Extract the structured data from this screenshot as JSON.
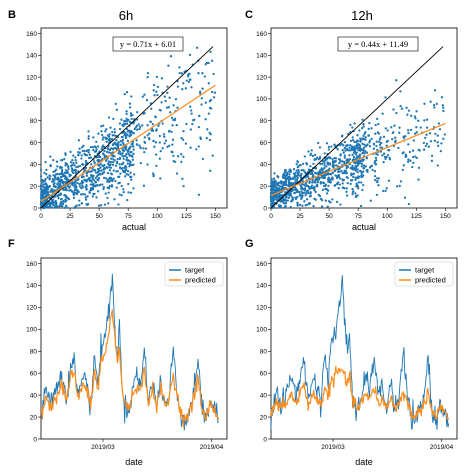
{
  "colors": {
    "blue": "#1f77b4",
    "orange": "#ff8c1a",
    "black": "#000000"
  },
  "chart_data": [
    {
      "panel": "B",
      "type": "scatter",
      "title": "6h",
      "xlabel": "actual",
      "ylabel": "",
      "xlim": [
        0,
        160
      ],
      "ylim": [
        0,
        165
      ],
      "xticks": [
        0,
        25,
        50,
        75,
        100,
        125,
        150
      ],
      "yticks": [
        0,
        20,
        40,
        60,
        80,
        100,
        120,
        140,
        160
      ],
      "equation": "y = 0.71x + 6.01",
      "identity_line": {
        "x": [
          0,
          148
        ],
        "y": [
          0,
          148
        ]
      },
      "fit": {
        "slope": 0.71,
        "intercept": 6.01,
        "x_range": [
          0,
          150
        ]
      },
      "point_cloud": [
        {
          "x_range": [
            0,
            80
          ],
          "y_center_slope": 0.62,
          "y_center_intercept": 8,
          "y_spread": 18,
          "n": 900
        },
        {
          "x_range": [
            70,
            150
          ],
          "y_center_slope": 0.55,
          "y_center_intercept": 18,
          "y_spread": 22,
          "n": 260
        }
      ]
    },
    {
      "panel": "C",
      "type": "scatter",
      "title": "12h",
      "xlabel": "actual",
      "ylabel": "",
      "xlim": [
        0,
        160
      ],
      "ylim": [
        0,
        165
      ],
      "xticks": [
        0,
        25,
        50,
        75,
        100,
        125,
        150
      ],
      "yticks": [
        0,
        20,
        40,
        60,
        80,
        100,
        120,
        140,
        160
      ],
      "equation": "y = 0.44x + 11.49",
      "identity_line": {
        "x": [
          0,
          148
        ],
        "y": [
          0,
          148
        ]
      },
      "fit": {
        "slope": 0.44,
        "intercept": 11.49,
        "x_range": [
          0,
          150
        ]
      },
      "point_cloud": [
        {
          "x_range": [
            0,
            80
          ],
          "y_center_slope": 0.42,
          "y_center_intercept": 12,
          "y_spread": 14,
          "n": 900
        },
        {
          "x_range": [
            70,
            150
          ],
          "y_center_slope": 0.35,
          "y_center_intercept": 18,
          "y_spread": 16,
          "n": 260
        }
      ]
    },
    {
      "panel": "F",
      "type": "line",
      "title": "",
      "xlabel": "date",
      "ylabel": "",
      "xlim": [
        0,
        180
      ],
      "ylim": [
        0,
        165
      ],
      "xticks": [
        {
          "value": 60,
          "label": "2019/03"
        },
        {
          "value": 165,
          "label": "2019/04"
        }
      ],
      "yticks": [
        0,
        20,
        40,
        60,
        80,
        100,
        120,
        140,
        160
      ],
      "legend": "top-right",
      "series": [
        {
          "name": "target",
          "color": "#1f77b4",
          "anchors": [
            [
              0,
              20
            ],
            [
              5,
              48
            ],
            [
              10,
              36
            ],
            [
              15,
              45
            ],
            [
              20,
              60
            ],
            [
              25,
              40
            ],
            [
              28,
              60
            ],
            [
              32,
              72
            ],
            [
              36,
              38
            ],
            [
              40,
              58
            ],
            [
              45,
              50
            ],
            [
              48,
              28
            ],
            [
              52,
              78
            ],
            [
              55,
              48
            ],
            [
              58,
              82
            ],
            [
              62,
              95
            ],
            [
              66,
              118
            ],
            [
              69,
              148
            ],
            [
              71,
              105
            ],
            [
              74,
              78
            ],
            [
              76,
              100
            ],
            [
              79,
              38
            ],
            [
              83,
              25
            ],
            [
              87,
              36
            ],
            [
              92,
              60
            ],
            [
              96,
              48
            ],
            [
              100,
              80
            ],
            [
              104,
              38
            ],
            [
              108,
              50
            ],
            [
              112,
              30
            ],
            [
              116,
              55
            ],
            [
              120,
              30
            ],
            [
              124,
              38
            ],
            [
              128,
              82
            ],
            [
              132,
              40
            ],
            [
              136,
              22
            ],
            [
              140,
              15
            ],
            [
              144,
              28
            ],
            [
              148,
              40
            ],
            [
              152,
              78
            ],
            [
              156,
              25
            ],
            [
              160,
              18
            ],
            [
              164,
              36
            ],
            [
              168,
              28
            ],
            [
              172,
              15
            ]
          ]
        },
        {
          "name": "predicted",
          "color": "#ff8c1a",
          "anchors": [
            [
              0,
              20
            ],
            [
              5,
              38
            ],
            [
              10,
              30
            ],
            [
              15,
              40
            ],
            [
              20,
              50
            ],
            [
              25,
              36
            ],
            [
              28,
              55
            ],
            [
              32,
              62
            ],
            [
              36,
              36
            ],
            [
              40,
              50
            ],
            [
              45,
              42
            ],
            [
              48,
              30
            ],
            [
              52,
              62
            ],
            [
              55,
              44
            ],
            [
              58,
              70
            ],
            [
              62,
              78
            ],
            [
              66,
              98
            ],
            [
              69,
              118
            ],
            [
              71,
              98
            ],
            [
              74,
              70
            ],
            [
              76,
              82
            ],
            [
              79,
              40
            ],
            [
              83,
              28
            ],
            [
              87,
              34
            ],
            [
              92,
              50
            ],
            [
              96,
              42
            ],
            [
              100,
              62
            ],
            [
              104,
              36
            ],
            [
              108,
              44
            ],
            [
              112,
              30
            ],
            [
              116,
              46
            ],
            [
              120,
              30
            ],
            [
              124,
              36
            ],
            [
              128,
              60
            ],
            [
              132,
              38
            ],
            [
              136,
              22
            ],
            [
              140,
              18
            ],
            [
              144,
              26
            ],
            [
              148,
              36
            ],
            [
              152,
              58
            ],
            [
              156,
              24
            ],
            [
              160,
              20
            ],
            [
              164,
              32
            ],
            [
              168,
              26
            ],
            [
              172,
              18
            ]
          ]
        }
      ]
    },
    {
      "panel": "G",
      "type": "line",
      "title": "",
      "xlabel": "date",
      "ylabel": "",
      "xlim": [
        0,
        180
      ],
      "ylim": [
        0,
        165
      ],
      "xticks": [
        {
          "value": 60,
          "label": "2019/03"
        },
        {
          "value": 165,
          "label": "2019/04"
        }
      ],
      "yticks": [
        0,
        20,
        40,
        60,
        80,
        100,
        120,
        140,
        160
      ],
      "legend": "top-right",
      "series": [
        {
          "name": "target",
          "color": "#1f77b4",
          "anchors": [
            [
              0,
              18
            ],
            [
              5,
              45
            ],
            [
              10,
              28
            ],
            [
              15,
              42
            ],
            [
              20,
              58
            ],
            [
              25,
              38
            ],
            [
              28,
              58
            ],
            [
              32,
              70
            ],
            [
              36,
              35
            ],
            [
              40,
              55
            ],
            [
              45,
              48
            ],
            [
              48,
              30
            ],
            [
              52,
              80
            ],
            [
              55,
              50
            ],
            [
              58,
              90
            ],
            [
              62,
              92
            ],
            [
              66,
              118
            ],
            [
              69,
              148
            ],
            [
              71,
              110
            ],
            [
              74,
              80
            ],
            [
              76,
              95
            ],
            [
              79,
              38
            ],
            [
              83,
              22
            ],
            [
              87,
              34
            ],
            [
              92,
              58
            ],
            [
              96,
              45
            ],
            [
              100,
              78
            ],
            [
              104,
              36
            ],
            [
              108,
              48
            ],
            [
              112,
              28
            ],
            [
              116,
              52
            ],
            [
              120,
              28
            ],
            [
              124,
              36
            ],
            [
              128,
              80
            ],
            [
              132,
              38
            ],
            [
              136,
              20
            ],
            [
              140,
              14
            ],
            [
              144,
              26
            ],
            [
              148,
              38
            ],
            [
              152,
              75
            ],
            [
              156,
              24
            ],
            [
              160,
              16
            ],
            [
              164,
              34
            ],
            [
              168,
              26
            ],
            [
              172,
              14
            ]
          ]
        },
        {
          "name": "predicted",
          "color": "#ff8c1a",
          "anchors": [
            [
              0,
              22
            ],
            [
              5,
              32
            ],
            [
              10,
              28
            ],
            [
              15,
              34
            ],
            [
              20,
              40
            ],
            [
              25,
              32
            ],
            [
              28,
              42
            ],
            [
              32,
              48
            ],
            [
              36,
              32
            ],
            [
              40,
              40
            ],
            [
              45,
              36
            ],
            [
              48,
              30
            ],
            [
              52,
              48
            ],
            [
              55,
              38
            ],
            [
              58,
              52
            ],
            [
              62,
              58
            ],
            [
              66,
              62
            ],
            [
              69,
              62
            ],
            [
              71,
              58
            ],
            [
              74,
              50
            ],
            [
              76,
              56
            ],
            [
              79,
              36
            ],
            [
              83,
              28
            ],
            [
              87,
              32
            ],
            [
              92,
              40
            ],
            [
              96,
              36
            ],
            [
              100,
              48
            ],
            [
              104,
              32
            ],
            [
              108,
              36
            ],
            [
              112,
              28
            ],
            [
              116,
              38
            ],
            [
              120,
              28
            ],
            [
              124,
              32
            ],
            [
              128,
              44
            ],
            [
              132,
              32
            ],
            [
              136,
              24
            ],
            [
              140,
              20
            ],
            [
              144,
              26
            ],
            [
              148,
              32
            ],
            [
              152,
              44
            ],
            [
              156,
              24
            ],
            [
              160,
              20
            ],
            [
              164,
              30
            ],
            [
              168,
              24
            ],
            [
              172,
              18
            ]
          ]
        }
      ]
    }
  ]
}
